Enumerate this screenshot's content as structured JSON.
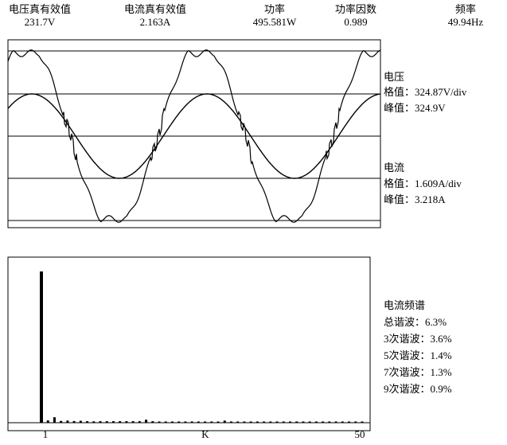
{
  "header": {
    "items": [
      {
        "label": "电压真有效值",
        "value": "231.7V"
      },
      {
        "label": "电流真有效值",
        "value": "2.163A"
      },
      {
        "label": "功率",
        "value": "495.581W"
      },
      {
        "label": "功率因数",
        "value": "0.989"
      },
      {
        "label": "频率",
        "value": "49.94Hz"
      }
    ]
  },
  "waveform": {
    "voltage": {
      "title": "电压",
      "scale": "格值：324.87V/div",
      "peak": "峰值：324.9V"
    },
    "current": {
      "title": "电流",
      "scale": "格值：1.609A/div",
      "peak": "峰值：3.218A"
    }
  },
  "spectrum": {
    "type": "bar",
    "title": "电流频谱",
    "lines": [
      "总谐波：6.3%",
      "3次谐波：3.6%",
      "5次谐波：1.4%",
      "7次谐波：1.3%",
      "9次谐波：0.9%"
    ],
    "x_labels": [
      "1",
      "K",
      "50"
    ],
    "values": [
      100,
      1.5,
      3.6,
      1.2,
      1.4,
      1.1,
      1.3,
      1.0,
      0.9,
      1.0,
      1.0,
      1.0,
      1.0,
      1.0,
      1.0,
      1.0,
      2.0,
      1.0,
      0.8,
      0.8,
      0.8,
      0.8,
      0.8,
      0.8,
      0.8,
      0.8,
      0.8,
      0.8,
      1.4,
      0.8,
      0.8,
      0.8,
      0.8,
      0.8,
      0.8,
      0.8,
      0.8,
      0.8,
      0.8,
      0.8,
      0.8,
      0.8,
      0.8,
      0.8,
      0.8,
      0.8,
      0.8,
      0.8,
      0.8,
      0.8
    ]
  }
}
